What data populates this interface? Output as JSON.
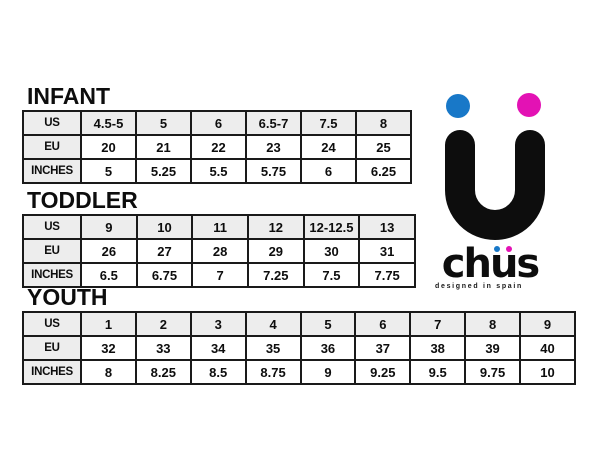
{
  "page": {
    "background": "#ffffff"
  },
  "logo": {
    "brand_name": "chüs",
    "wordmark": {
      "pre": "ch",
      "u": "u",
      "post": "s"
    },
    "tagline": "designed in spain",
    "colors": {
      "blue": "#1878C8",
      "magenta": "#E312B4",
      "ink": "#0d0d0d"
    }
  },
  "styles": {
    "header_cell_bg": "#ededed",
    "table_border": "#1a1a1a"
  },
  "chart_data": [
    {
      "type": "table",
      "title": "INFANT",
      "row_labels": [
        "US",
        "EU",
        "INCHES"
      ],
      "rows": [
        [
          "4.5-5",
          "5",
          "6",
          "6.5-7",
          "7.5",
          "8"
        ],
        [
          "20",
          "21",
          "22",
          "23",
          "24",
          "25"
        ],
        [
          "5",
          "5.25",
          "5.5",
          "5.75",
          "6",
          "6.25"
        ]
      ]
    },
    {
      "type": "table",
      "title": "TODDLER",
      "row_labels": [
        "US",
        "EU",
        "INCHES"
      ],
      "rows": [
        [
          "9",
          "10",
          "11",
          "12",
          "12-12.5",
          "13"
        ],
        [
          "26",
          "27",
          "28",
          "29",
          "30",
          "31"
        ],
        [
          "6.5",
          "6.75",
          "7",
          "7.25",
          "7.5",
          "7.75"
        ]
      ]
    },
    {
      "type": "table",
      "title": "YOUTH",
      "row_labels": [
        "US",
        "EU",
        "INCHES"
      ],
      "rows": [
        [
          "1",
          "2",
          "3",
          "4",
          "5",
          "6",
          "7",
          "8",
          "9"
        ],
        [
          "32",
          "33",
          "34",
          "35",
          "36",
          "37",
          "38",
          "39",
          "40"
        ],
        [
          "8",
          "8.25",
          "8.5",
          "8.75",
          "9",
          "9.25",
          "9.5",
          "9.75",
          "10"
        ]
      ]
    }
  ]
}
